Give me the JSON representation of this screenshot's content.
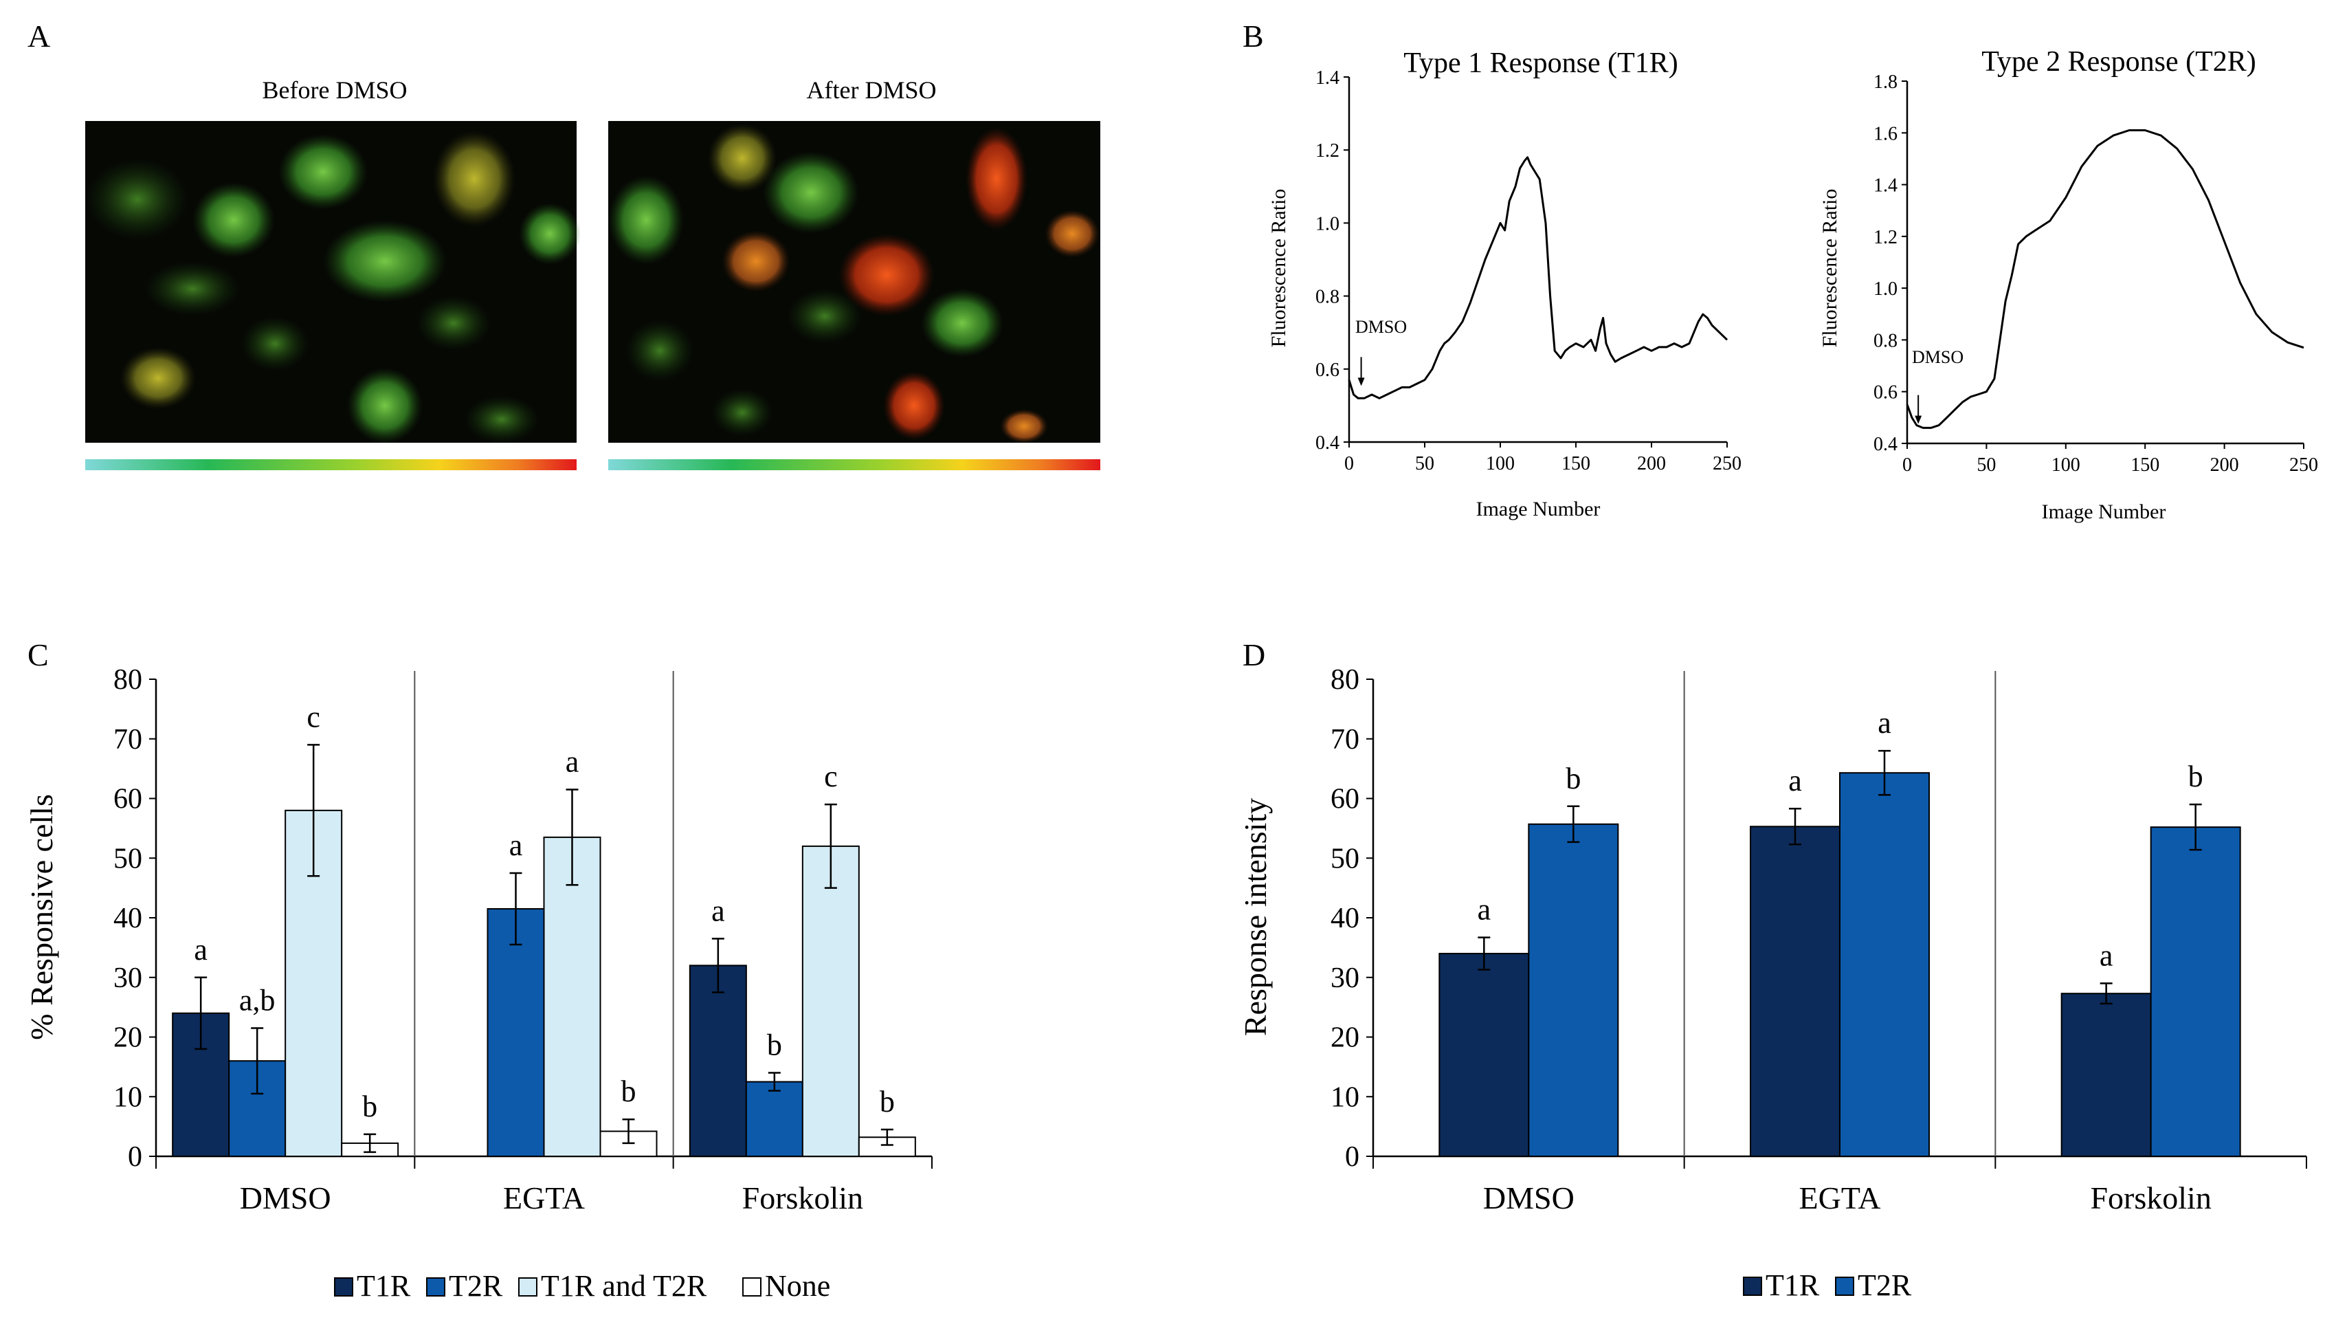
{
  "colors": {
    "t1r": "#0c2b5a",
    "t2r": "#0d5aab",
    "both": "#d4ecf5",
    "none": "#ffffff",
    "axis": "#000000",
    "divider": "#555555"
  },
  "panel_a": {
    "label": "A",
    "left_title": "Before DMSO",
    "right_title": "After DMSO"
  },
  "chart_data": [
    {
      "id": "b1",
      "panel_label": "B",
      "type": "line",
      "title": "Type 1 Response (T1R)",
      "xlabel": "Image Number",
      "ylabel": "Fluorescence Ratio",
      "xlim": [
        0,
        250
      ],
      "ylim": [
        0.4,
        1.4
      ],
      "xticks": [
        "0",
        "50",
        "100",
        "150",
        "200",
        "250"
      ],
      "yticks": [
        "0.4",
        "0.6",
        "0.8",
        "1.0",
        "1.2",
        "1.4"
      ],
      "annotation": "DMSO",
      "annotation_x": 8,
      "annotation_y": 0.55,
      "x": [
        0,
        3,
        6,
        10,
        15,
        20,
        25,
        30,
        35,
        40,
        45,
        50,
        55,
        60,
        63,
        66,
        70,
        75,
        80,
        85,
        90,
        95,
        100,
        103,
        106,
        110,
        113,
        116,
        118,
        120,
        123,
        126,
        130,
        133,
        136,
        140,
        143,
        146,
        150,
        155,
        160,
        163,
        166,
        168,
        170,
        173,
        176,
        180,
        185,
        190,
        195,
        200,
        205,
        210,
        215,
        220,
        225,
        228,
        231,
        234,
        237,
        240,
        245,
        250
      ],
      "y": [
        0.57,
        0.53,
        0.52,
        0.52,
        0.53,
        0.52,
        0.53,
        0.54,
        0.55,
        0.55,
        0.56,
        0.57,
        0.6,
        0.65,
        0.67,
        0.68,
        0.7,
        0.73,
        0.78,
        0.84,
        0.9,
        0.95,
        1.0,
        0.98,
        1.06,
        1.1,
        1.15,
        1.17,
        1.18,
        1.16,
        1.14,
        1.12,
        1.0,
        0.8,
        0.65,
        0.63,
        0.65,
        0.66,
        0.67,
        0.66,
        0.68,
        0.65,
        0.71,
        0.74,
        0.67,
        0.64,
        0.62,
        0.63,
        0.64,
        0.65,
        0.66,
        0.65,
        0.66,
        0.66,
        0.67,
        0.66,
        0.67,
        0.7,
        0.73,
        0.75,
        0.74,
        0.72,
        0.7,
        0.68
      ]
    },
    {
      "id": "b2",
      "type": "line",
      "title": "Type 2 Response (T2R)",
      "xlabel": "Image Number",
      "ylabel": "Fluorescence Ratio",
      "xlim": [
        0,
        250
      ],
      "ylim": [
        0.4,
        1.8
      ],
      "xticks": [
        "0",
        "50",
        "100",
        "150",
        "200",
        "250"
      ],
      "yticks": [
        "0.4",
        "0.6",
        "0.8",
        "1.0",
        "1.2",
        "1.4",
        "1.6",
        "1.8"
      ],
      "annotation": "DMSO",
      "annotation_x": 7,
      "annotation_y": 0.47,
      "x": [
        0,
        3,
        6,
        10,
        15,
        20,
        25,
        30,
        35,
        40,
        45,
        50,
        55,
        58,
        62,
        66,
        70,
        75,
        80,
        90,
        100,
        110,
        120,
        130,
        140,
        150,
        160,
        170,
        180,
        190,
        200,
        210,
        220,
        230,
        240,
        250
      ],
      "y": [
        0.55,
        0.5,
        0.47,
        0.46,
        0.46,
        0.47,
        0.5,
        0.53,
        0.56,
        0.58,
        0.59,
        0.6,
        0.65,
        0.78,
        0.95,
        1.05,
        1.17,
        1.2,
        1.22,
        1.26,
        1.35,
        1.47,
        1.55,
        1.59,
        1.61,
        1.61,
        1.59,
        1.54,
        1.46,
        1.34,
        1.18,
        1.02,
        0.9,
        0.83,
        0.79,
        0.77
      ]
    },
    {
      "id": "c",
      "panel_label": "C",
      "type": "bar",
      "ylabel": "% Responsive cells",
      "ylim": [
        0,
        80
      ],
      "yticks": [
        "0",
        "10",
        "20",
        "30",
        "40",
        "50",
        "60",
        "70",
        "80"
      ],
      "categories": [
        "DMSO",
        "EGTA",
        "Forskolin"
      ],
      "series": [
        {
          "name": "T1R",
          "color_key": "t1r",
          "values": [
            24,
            null,
            32
          ],
          "errors": [
            6,
            null,
            4.5
          ],
          "letters": [
            "a",
            "",
            "a"
          ]
        },
        {
          "name": "T2R",
          "color_key": "t2r",
          "values": [
            16,
            41.5,
            12.5
          ],
          "errors": [
            5.5,
            6,
            1.5
          ],
          "letters": [
            "a,b",
            "a",
            "b"
          ]
        },
        {
          "name": "T1R and T2R",
          "color_key": "both",
          "values": [
            58,
            53.5,
            52
          ],
          "errors": [
            11,
            8,
            7
          ],
          "letters": [
            "c",
            "a",
            "c"
          ]
        },
        {
          "name": "None",
          "color_key": "none",
          "values": [
            2.2,
            4.2,
            3.2
          ],
          "errors": [
            1.5,
            2,
            1.3
          ],
          "letters": [
            "b",
            "b",
            "b"
          ]
        }
      ]
    },
    {
      "id": "d",
      "panel_label": "D",
      "type": "bar",
      "ylabel": "Response  intensity",
      "ylim": [
        0,
        80
      ],
      "yticks": [
        "0",
        "10",
        "20",
        "30",
        "40",
        "50",
        "60",
        "70",
        "80"
      ],
      "categories": [
        "DMSO",
        "EGTA",
        "Forskolin"
      ],
      "series": [
        {
          "name": "T1R",
          "color_key": "t1r",
          "values": [
            34,
            55.3,
            27.3
          ],
          "errors": [
            2.7,
            3,
            1.7
          ],
          "letters": [
            "a",
            "a",
            "a"
          ]
        },
        {
          "name": "T2R",
          "color_key": "t2r",
          "values": [
            55.7,
            64.3,
            55.2
          ],
          "errors": [
            3,
            3.7,
            3.8
          ],
          "letters": [
            "b",
            "a",
            "b"
          ]
        }
      ]
    }
  ]
}
